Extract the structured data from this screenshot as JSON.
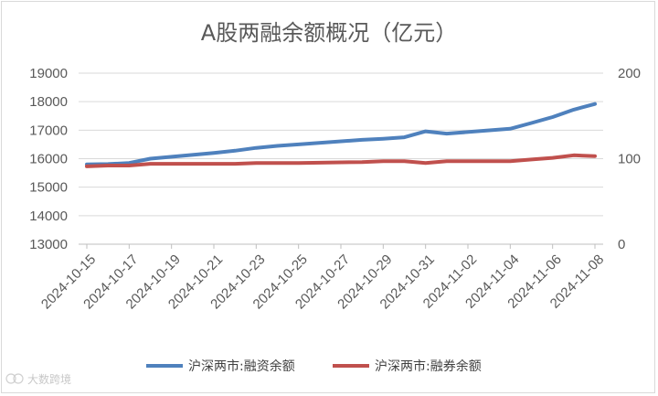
{
  "chart_data": {
    "type": "line",
    "title": "A股两融余额概况（亿元）",
    "x_tick_labels": [
      "2024-10-15",
      "2024-10-17",
      "2024-10-19",
      "2024-10-21",
      "2024-10-23",
      "2024-10-25",
      "2024-10-27",
      "2024-10-29",
      "2024-10-31",
      "2024-11-02",
      "2024-11-04",
      "2024-11-06",
      "2024-11-08"
    ],
    "x": [
      "2024-10-15",
      "2024-10-16",
      "2024-10-17",
      "2024-10-18",
      "2024-10-21",
      "2024-10-22",
      "2024-10-23",
      "2024-10-24",
      "2024-10-25",
      "2024-10-28",
      "2024-10-29",
      "2024-10-30",
      "2024-10-31",
      "2024-11-01",
      "2024-11-04",
      "2024-11-05",
      "2024-11-06",
      "2024-11-07",
      "2024-11-08"
    ],
    "xlabel": "",
    "y_left": {
      "ylim": [
        13000,
        19000
      ],
      "ticks": [
        13000,
        14000,
        15000,
        16000,
        17000,
        18000,
        19000
      ]
    },
    "y_right": {
      "ylim": [
        0,
        200
      ],
      "ticks": [
        0,
        100,
        200
      ]
    },
    "grid": true,
    "legend_position": "bottom",
    "series": [
      {
        "name": "沪深两市:融资余额",
        "axis": "left",
        "color": "#4f81bd",
        "values": [
          15800,
          15810,
          15850,
          16000,
          16200,
          16280,
          16380,
          16450,
          16500,
          16660,
          16700,
          16750,
          16960,
          16880,
          17050,
          17250,
          17460,
          17720,
          17920
        ]
      },
      {
        "name": "沪深两市:融券余额",
        "axis": "right",
        "color": "#c0504d",
        "values": [
          91,
          92,
          92,
          94,
          94,
          94,
          95,
          95,
          95,
          96,
          97,
          97,
          95,
          97,
          97,
          99,
          101,
          104,
          103
        ]
      }
    ]
  },
  "watermark": "大数跨境"
}
